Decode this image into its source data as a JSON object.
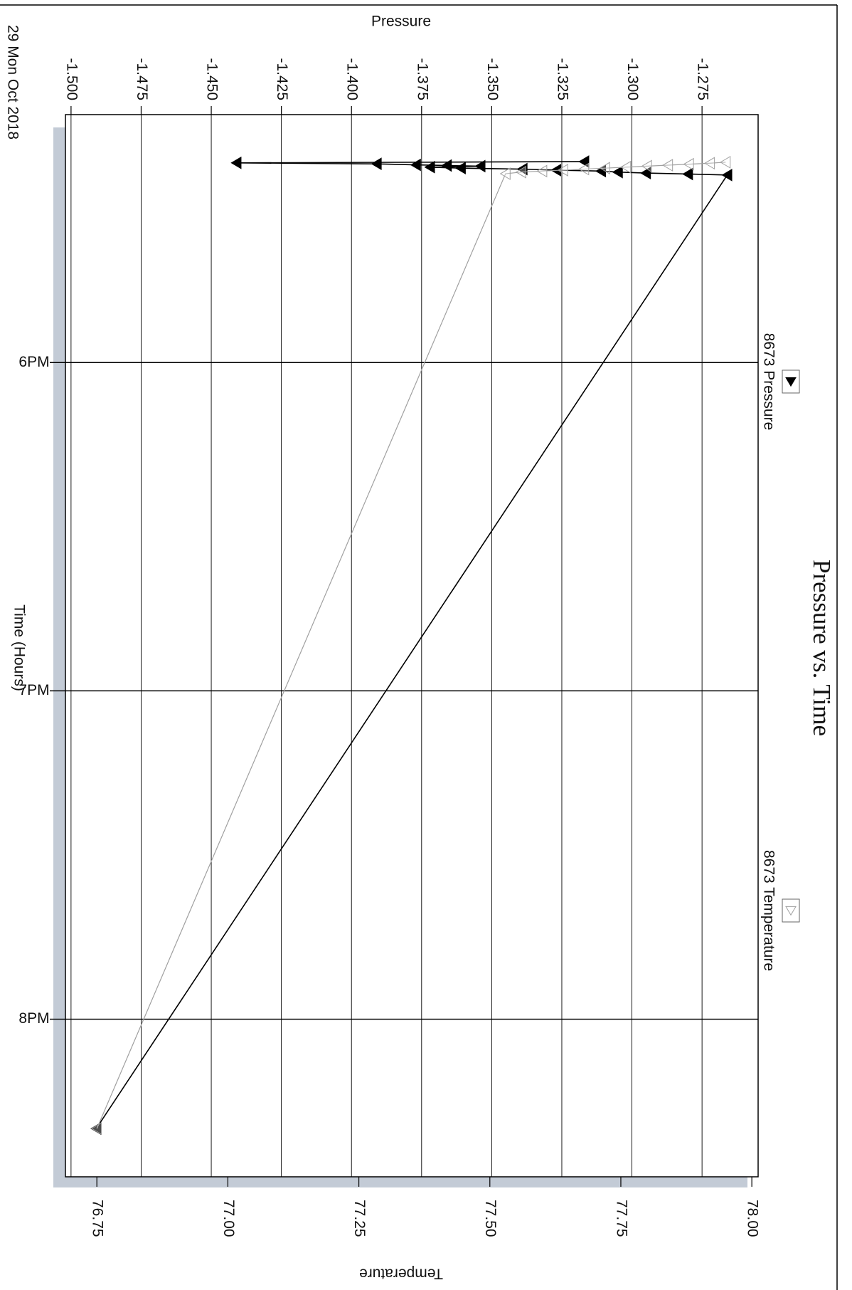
{
  "chart_data": {
    "type": "line",
    "title": "Pressure vs. Time",
    "date_label": "29 Mon Oct 2018",
    "x_label": "Time (Hours)",
    "y_label": "Pressure",
    "y2_label": "Temperature",
    "xlim": [
      17.245,
      20.48
    ],
    "xticks": [
      {
        "value": 18,
        "label": "6PM"
      },
      {
        "value": 19,
        "label": "7PM"
      },
      {
        "value": 20,
        "label": "8PM"
      }
    ],
    "ylim": [
      -1.502,
      -1.255
    ],
    "yticks": [
      {
        "value": -1.5,
        "label": "-1.500"
      },
      -1.475,
      {
        "value": -1.45,
        "label": "-1.450"
      },
      -1.425,
      {
        "value": -1.4,
        "label": "-1.400"
      },
      -1.375,
      {
        "value": -1.35,
        "label": "-1.350"
      },
      -1.325,
      {
        "value": -1.3,
        "label": "-1.300"
      },
      -1.275
    ],
    "y2lim": [
      76.69,
      78.012
    ],
    "y2ticks": [
      76.75,
      {
        "value": 77,
        "label": "77.00"
      },
      77.25,
      {
        "value": 77.5,
        "label": "77.50"
      },
      77.75,
      {
        "value": 78,
        "label": "78.00"
      }
    ],
    "grid": true,
    "series": [
      {
        "name": "8673 Pressure",
        "color": "#000000",
        "filled": true,
        "axis": "y",
        "x": [
          17.388,
          17.392,
          17.395,
          17.398,
          17.4,
          17.402,
          17.405,
          17.408,
          17.411,
          17.414,
          17.417,
          17.42,
          17.423,
          17.426,
          17.429,
          20.333
        ],
        "values": [
          -1.317,
          -1.441,
          -1.391,
          -1.377,
          -1.366,
          -1.354,
          -1.372,
          -1.361,
          -1.339,
          -1.327,
          -1.311,
          -1.305,
          -1.295,
          -1.28,
          -1.266,
          -1.491
        ]
      },
      {
        "name": "8673 Temperature",
        "color": "#a0a0a0",
        "filled": false,
        "axis": "y2",
        "x": [
          17.39,
          17.393,
          17.396,
          17.399,
          17.402,
          17.405,
          17.408,
          17.411,
          17.414,
          17.417,
          17.42,
          17.425,
          20.333
        ],
        "values": [
          77.95,
          77.92,
          77.88,
          77.84,
          77.8,
          77.76,
          77.72,
          77.68,
          77.64,
          77.6,
          77.56,
          77.53,
          76.75
        ]
      }
    ]
  }
}
